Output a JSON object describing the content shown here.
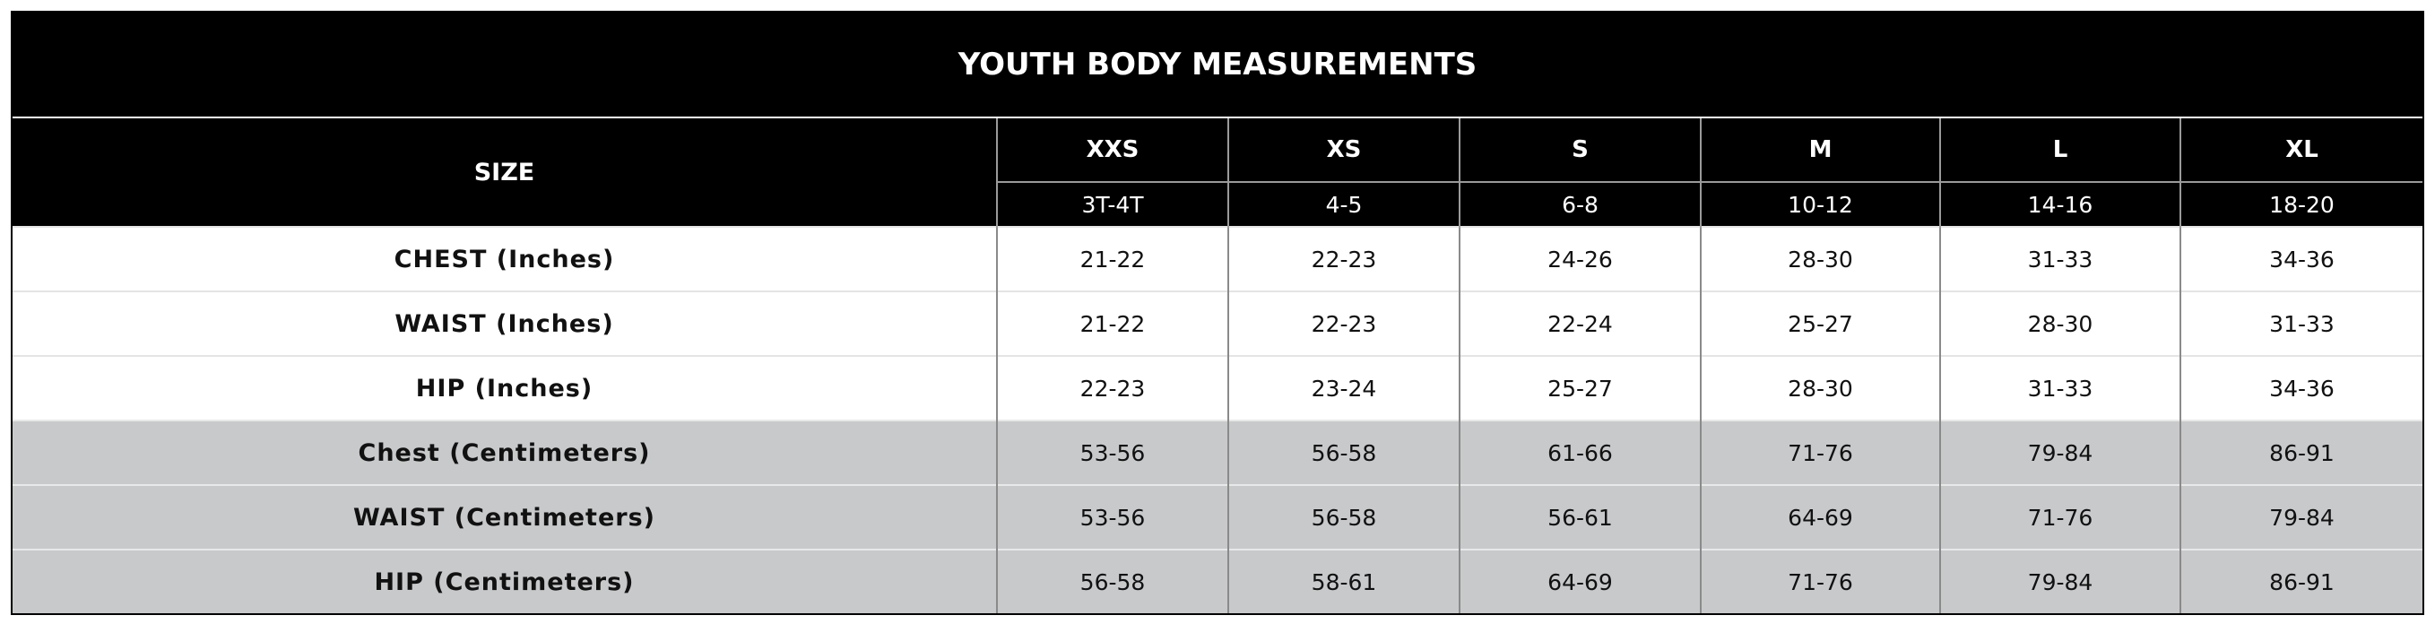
{
  "header": {
    "title": "YOUTH BODY MEASUREMENTS"
  },
  "table": {
    "size_label": "SIZE",
    "sizes": [
      {
        "name": "XXS",
        "range": "3T-4T"
      },
      {
        "name": "XS",
        "range": "4-5"
      },
      {
        "name": "S",
        "range": "6-8"
      },
      {
        "name": "M",
        "range": "10-12"
      },
      {
        "name": "L",
        "range": "14-16"
      },
      {
        "name": "XL",
        "range": "18-20"
      }
    ],
    "rows": [
      {
        "label": "CHEST (Inches)",
        "values": [
          "21-22",
          "22-23",
          "24-26",
          "28-30",
          "31-33",
          "34-36"
        ]
      },
      {
        "label": "WAIST (Inches)",
        "values": [
          "21-22",
          "22-23",
          "22-24",
          "25-27",
          "28-30",
          "31-33"
        ]
      },
      {
        "label": "HIP (Inches)",
        "values": [
          "22-23",
          "23-24",
          "25-27",
          "28-30",
          "31-33",
          "34-36"
        ]
      },
      {
        "label": "Chest (Centimeters)",
        "values": [
          "53-56",
          "56-58",
          "61-66",
          "71-76",
          "79-84",
          "86-91"
        ]
      },
      {
        "label": "WAIST (Centimeters)",
        "values": [
          "53-56",
          "56-58",
          "56-61",
          "64-69",
          "71-76",
          "79-84"
        ]
      },
      {
        "label": "HIP (Centimeters)",
        "values": [
          "56-58",
          "58-61",
          "64-69",
          "71-76",
          "79-84",
          "86-91"
        ]
      }
    ]
  }
}
